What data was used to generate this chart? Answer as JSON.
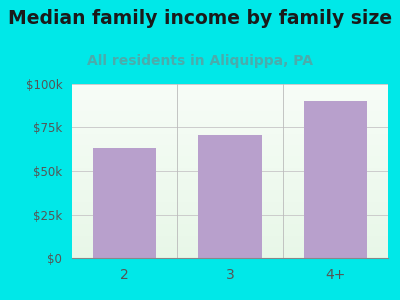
{
  "title": "Median family income by family size",
  "subtitle": "All residents in Aliquippa, PA",
  "categories": [
    "2",
    "3",
    "4+"
  ],
  "values": [
    63000,
    70500,
    90500
  ],
  "bar_color": "#b8a0cc",
  "background_color": "#00e8e8",
  "title_fontsize": 13.5,
  "subtitle_fontsize": 10,
  "subtitle_color": "#4aacac",
  "tick_color": "#555555",
  "ylim": [
    0,
    100000
  ],
  "yticks": [
    0,
    25000,
    50000,
    75000,
    100000
  ],
  "ytick_labels": [
    "$0",
    "$25k",
    "$50k",
    "$75k",
    "$100k"
  ]
}
